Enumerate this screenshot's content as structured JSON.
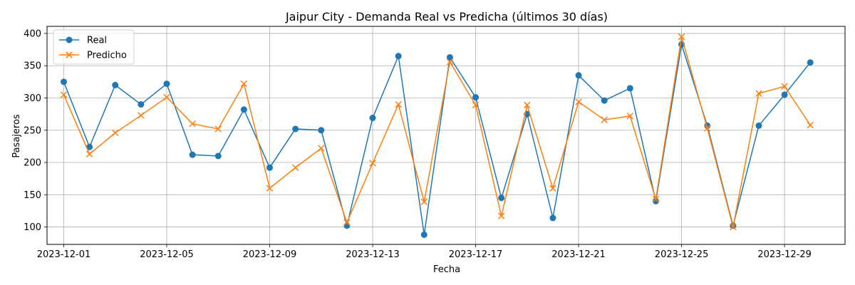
{
  "chart_data": {
    "type": "line",
    "title": "Jaipur City - Demanda Real vs Predicha (últimos 30 días)",
    "xlabel": "Fecha",
    "ylabel": "Pasajeros",
    "x_start": "2023-12-01",
    "x": [
      1,
      2,
      3,
      4,
      5,
      6,
      7,
      8,
      9,
      10,
      11,
      12,
      13,
      14,
      15,
      16,
      17,
      18,
      19,
      20,
      21,
      22,
      23,
      24,
      25,
      26,
      27,
      28,
      29,
      30
    ],
    "xlim": [
      0.35,
      31.35
    ],
    "ylim": [
      73,
      411
    ],
    "xticks": [
      1,
      5,
      9,
      13,
      17,
      21,
      25,
      29
    ],
    "xtick_labels": [
      "2023-12-01",
      "2023-12-05",
      "2023-12-09",
      "2023-12-13",
      "2023-12-17",
      "2023-12-21",
      "2023-12-25",
      "2023-12-29"
    ],
    "yticks": [
      100,
      150,
      200,
      250,
      300,
      350,
      400
    ],
    "ytick_labels": [
      "100",
      "150",
      "200",
      "250",
      "300",
      "350",
      "400"
    ],
    "grid": true,
    "legend_position": "top-left",
    "series": [
      {
        "name": "Real",
        "color": "#1f77b4",
        "marker": "circle",
        "values": [
          325,
          224,
          320,
          290,
          322,
          212,
          210,
          282,
          192,
          252,
          250,
          102,
          269,
          365,
          88,
          363,
          301,
          145,
          275,
          114,
          335,
          296,
          315,
          140,
          383,
          257,
          102,
          257,
          305,
          355
        ]
      },
      {
        "name": "Predicho",
        "color": "#ff7f0e",
        "marker": "x",
        "values": [
          305,
          213,
          246,
          273,
          301,
          260,
          252,
          322,
          160,
          192,
          222,
          107,
          199,
          290,
          139,
          356,
          289,
          117,
          289,
          160,
          294,
          266,
          272,
          143,
          395,
          253,
          100,
          307,
          318,
          258
        ]
      }
    ]
  }
}
